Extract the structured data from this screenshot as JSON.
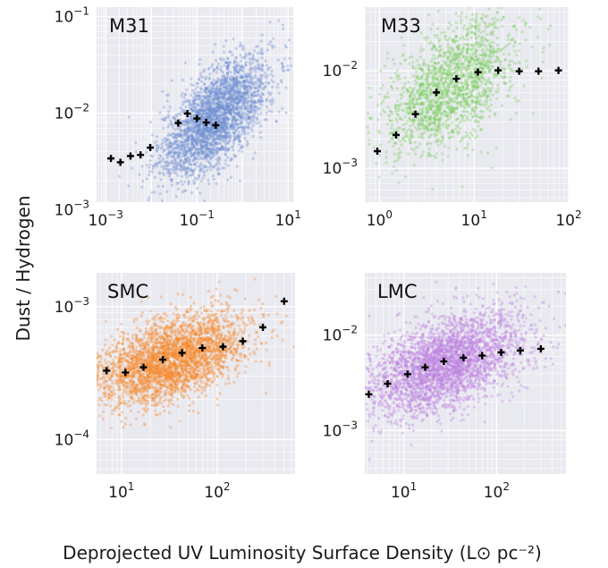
{
  "figure": {
    "ylabel": "Dust / Hydrogen",
    "xlabel": "Deprojected UV Luminosity Surface Density (L⊙ pc⁻²)"
  },
  "chart_data": [
    {
      "type": "scatter",
      "name": "M31",
      "color": "#6f8fd2",
      "xscale": "log",
      "yscale": "log",
      "xlim": [
        0.00063,
        13
      ],
      "ylim": [
        0.0012,
        0.125
      ],
      "xticks": [
        0.001,
        0.1,
        10
      ],
      "xticklabels": [
        {
          "base": "10",
          "exp": "−3"
        },
        {
          "base": "10",
          "exp": "−1"
        },
        {
          "base": "10",
          "exp": "1"
        }
      ],
      "yticks": [
        0.001,
        0.01,
        0.1
      ],
      "yticklabels": [
        {
          "base": "10",
          "exp": "−3"
        },
        {
          "base": "10",
          "exp": "−2"
        },
        {
          "base": "10",
          "exp": "−1"
        }
      ],
      "cloud": {
        "xc": -0.6,
        "yc": -2.05,
        "xsd": 0.6,
        "ysd": 0.24,
        "slope": 0.33,
        "n": 2800
      },
      "medians": [
        {
          "x": 0.0013,
          "y": 0.0034
        },
        {
          "x": 0.0021,
          "y": 0.0031
        },
        {
          "x": 0.0035,
          "y": 0.0036
        },
        {
          "x": 0.0058,
          "y": 0.0037
        },
        {
          "x": 0.0095,
          "y": 0.0044
        },
        {
          "x": 0.039,
          "y": 0.0079
        },
        {
          "x": 0.062,
          "y": 0.0099
        },
        {
          "x": 0.1,
          "y": 0.0088
        },
        {
          "x": 0.16,
          "y": 0.008
        },
        {
          "x": 0.26,
          "y": 0.0075
        }
      ]
    },
    {
      "type": "scatter",
      "name": "M33",
      "color": "#7ccd5e",
      "xscale": "log",
      "yscale": "log",
      "xlim": [
        0.7,
        100
      ],
      "ylim": [
        0.00045,
        0.045
      ],
      "xticks": [
        1,
        10,
        100
      ],
      "xticklabels": [
        {
          "base": "10",
          "exp": "0"
        },
        {
          "base": "10",
          "exp": "1"
        },
        {
          "base": "10",
          "exp": "2"
        }
      ],
      "yticks": [
        0.001,
        0.01
      ],
      "yticklabels": [
        {
          "base": "10",
          "exp": "−3"
        },
        {
          "base": "10",
          "exp": "−2"
        }
      ],
      "cloud": {
        "xc": 0.75,
        "yc": -2.15,
        "xsd": 0.35,
        "ysd": 0.3,
        "slope": 0.5,
        "n": 1800
      },
      "medians": [
        {
          "x": 0.95,
          "y": 0.0015
        },
        {
          "x": 1.5,
          "y": 0.0022
        },
        {
          "x": 2.4,
          "y": 0.0036
        },
        {
          "x": 4.0,
          "y": 0.006
        },
        {
          "x": 6.5,
          "y": 0.0083
        },
        {
          "x": 11,
          "y": 0.0097
        },
        {
          "x": 18,
          "y": 0.0101
        },
        {
          "x": 30,
          "y": 0.0099
        },
        {
          "x": 48,
          "y": 0.0099
        },
        {
          "x": 78,
          "y": 0.0101
        }
      ]
    },
    {
      "type": "scatter",
      "name": "SMC",
      "color": "#f5892e",
      "xscale": "log",
      "yscale": "log",
      "xlim": [
        5.5,
        650
      ],
      "ylim": [
        5.5e-05,
        0.0018
      ],
      "xticks": [
        10,
        100
      ],
      "xticklabels": [
        {
          "base": "10",
          "exp": "1"
        },
        {
          "base": "10",
          "exp": "2"
        }
      ],
      "yticks": [
        0.0001,
        0.001
      ],
      "yticklabels": [
        {
          "base": "10",
          "exp": "−4"
        },
        {
          "base": "10",
          "exp": "−3"
        }
      ],
      "cloud": {
        "xc": 1.5,
        "yc": -3.4,
        "xsd": 0.4,
        "ysd": 0.15,
        "slope": 0.22,
        "n": 3200
      },
      "medians": [
        {
          "x": 7,
          "y": 0.00033
        },
        {
          "x": 11,
          "y": 0.00032
        },
        {
          "x": 17,
          "y": 0.00035
        },
        {
          "x": 27,
          "y": 0.0004
        },
        {
          "x": 43,
          "y": 0.00045
        },
        {
          "x": 70,
          "y": 0.00049
        },
        {
          "x": 115,
          "y": 0.0005
        },
        {
          "x": 185,
          "y": 0.00055
        },
        {
          "x": 300,
          "y": 0.0007
        },
        {
          "x": 500,
          "y": 0.0011
        }
      ]
    },
    {
      "type": "scatter",
      "name": "LMC",
      "color": "#bd82e0",
      "xscale": "log",
      "yscale": "log",
      "xlim": [
        3.8,
        560
      ],
      "ylim": [
        0.00035,
        0.045
      ],
      "xticks": [
        10,
        100
      ],
      "xticklabels": [
        {
          "base": "10",
          "exp": "1"
        },
        {
          "base": "10",
          "exp": "2"
        }
      ],
      "yticks": [
        0.001,
        0.01
      ],
      "yticklabels": [
        {
          "base": "10",
          "exp": "−3"
        },
        {
          "base": "10",
          "exp": "−2"
        }
      ],
      "cloud": {
        "xc": 1.45,
        "yc": -2.3,
        "xsd": 0.42,
        "ysd": 0.24,
        "slope": 0.3,
        "n": 3200
      },
      "medians": [
        {
          "x": 4.2,
          "y": 0.0024
        },
        {
          "x": 6.7,
          "y": 0.0031
        },
        {
          "x": 11,
          "y": 0.0039
        },
        {
          "x": 17,
          "y": 0.0046
        },
        {
          "x": 27,
          "y": 0.0053
        },
        {
          "x": 44,
          "y": 0.0058
        },
        {
          "x": 70,
          "y": 0.0061
        },
        {
          "x": 112,
          "y": 0.0066
        },
        {
          "x": 180,
          "y": 0.0069
        },
        {
          "x": 300,
          "y": 0.0072
        }
      ]
    }
  ]
}
